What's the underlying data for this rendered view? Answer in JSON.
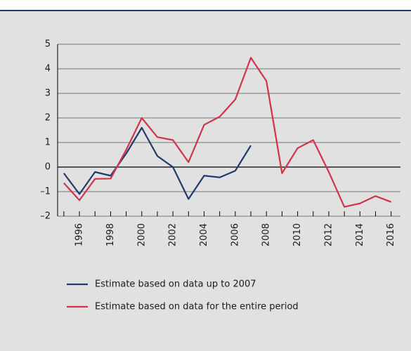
{
  "chart_data": {
    "type": "line",
    "x": [
      1995,
      1996,
      1997,
      1998,
      1999,
      2000,
      2001,
      2002,
      2003,
      2004,
      2005,
      2006,
      2007,
      2008,
      2009,
      2010,
      2011,
      2012,
      2013,
      2014,
      2015,
      2016
    ],
    "series": [
      {
        "name": "Estimate based on data up to 2007",
        "color": "#1f3a6b",
        "values": [
          -0.25,
          -1.1,
          -0.2,
          -0.35,
          0.55,
          1.6,
          0.45,
          0.0,
          -1.3,
          -0.35,
          -0.42,
          -0.15,
          0.88,
          null,
          null,
          null,
          null,
          null,
          null,
          null,
          null,
          null
        ]
      },
      {
        "name": "Estimate based on data for the entire period",
        "color": "#d2334b",
        "values": [
          -0.65,
          -1.35,
          -0.48,
          -0.47,
          0.7,
          2.0,
          1.22,
          1.1,
          0.2,
          1.72,
          2.05,
          2.75,
          4.45,
          3.5,
          -0.25,
          0.77,
          1.1,
          -0.2,
          -1.62,
          -1.48,
          -1.18,
          -1.42
        ]
      }
    ],
    "xlim": [
      1994.6,
      2016.6
    ],
    "xticks": [
      1996,
      1998,
      2000,
      2002,
      2004,
      2006,
      2008,
      2010,
      2012,
      2014,
      2016
    ],
    "xminorticks": [
      1995,
      1997,
      1999,
      2001,
      2003,
      2005,
      2007,
      2009,
      2011,
      2013,
      2015
    ],
    "ylim": [
      -2,
      5
    ],
    "yticks": [
      {
        "value": -2,
        "label": "–2"
      },
      {
        "value": -1,
        "label": "–1"
      },
      0,
      1,
      2,
      3,
      4,
      5
    ],
    "grid": true
  }
}
